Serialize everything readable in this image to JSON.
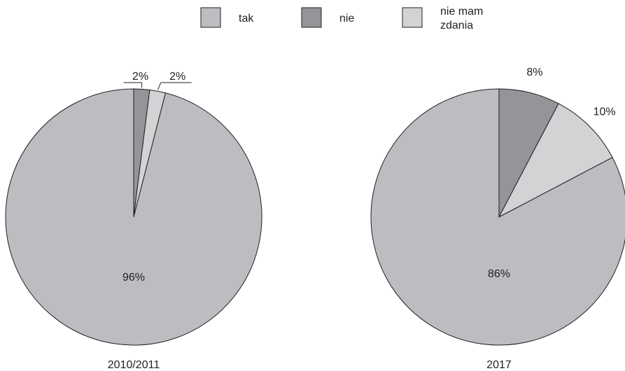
{
  "legend": [
    {
      "label": "tak",
      "color": "#bcbdc0"
    },
    {
      "label": "nie",
      "color": "#939598"
    },
    {
      "label": "nie mam zdania",
      "color": "#d1d3d4"
    }
  ],
  "chart_data": [
    {
      "type": "pie",
      "caption": "2010/2011",
      "categories": [
        "nie",
        "nie mam zdania",
        "tak"
      ],
      "values": [
        2,
        2,
        96
      ],
      "labels": [
        "2%",
        "2%",
        "96%"
      ],
      "colors": [
        "#939598",
        "#d1d3d4",
        "#bcbdc0"
      ],
      "start_angle": "12 o'clock",
      "direction": "clockwise",
      "small_slice_leader_lines": true
    },
    {
      "type": "pie",
      "caption": "2017",
      "categories": [
        "nie",
        "nie mam zdania",
        "tak"
      ],
      "values": [
        8,
        10,
        86
      ],
      "labels": [
        "8%",
        "10%",
        "86%"
      ],
      "colors": [
        "#939598",
        "#d1d3d4",
        "#bcbdc0"
      ],
      "start_angle": "12 o'clock",
      "direction": "clockwise",
      "small_slice_leader_lines": false
    }
  ]
}
